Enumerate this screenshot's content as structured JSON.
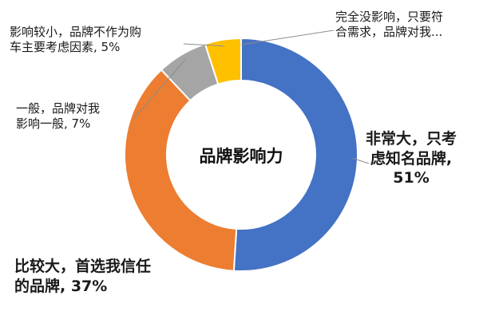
{
  "chart_data": {
    "type": "pie",
    "title": "品牌影响力",
    "slices": [
      {
        "label_lines": [
          "非常大，只考",
          "虑知名品牌,",
          "51%"
        ],
        "value": 51,
        "color": "#4472C4"
      },
      {
        "label_lines": [
          "比较大，首选我信任",
          "的品牌, 37%"
        ],
        "value": 37,
        "color": "#ED7D31"
      },
      {
        "label_lines": [
          "一般，品牌对我",
          "影响一般, 7%"
        ],
        "value": 7,
        "color": "#A5A5A5"
      },
      {
        "label_lines": [
          "影响较小，品牌不作为购",
          "车主要考虑因素, 5%"
        ],
        "value": 5,
        "color": "#FFC000"
      },
      {
        "label_lines": [
          "完全没影响，只要符",
          "合需求，品牌对我..."
        ],
        "value": 0,
        "color": "#5B9BD5"
      }
    ]
  }
}
